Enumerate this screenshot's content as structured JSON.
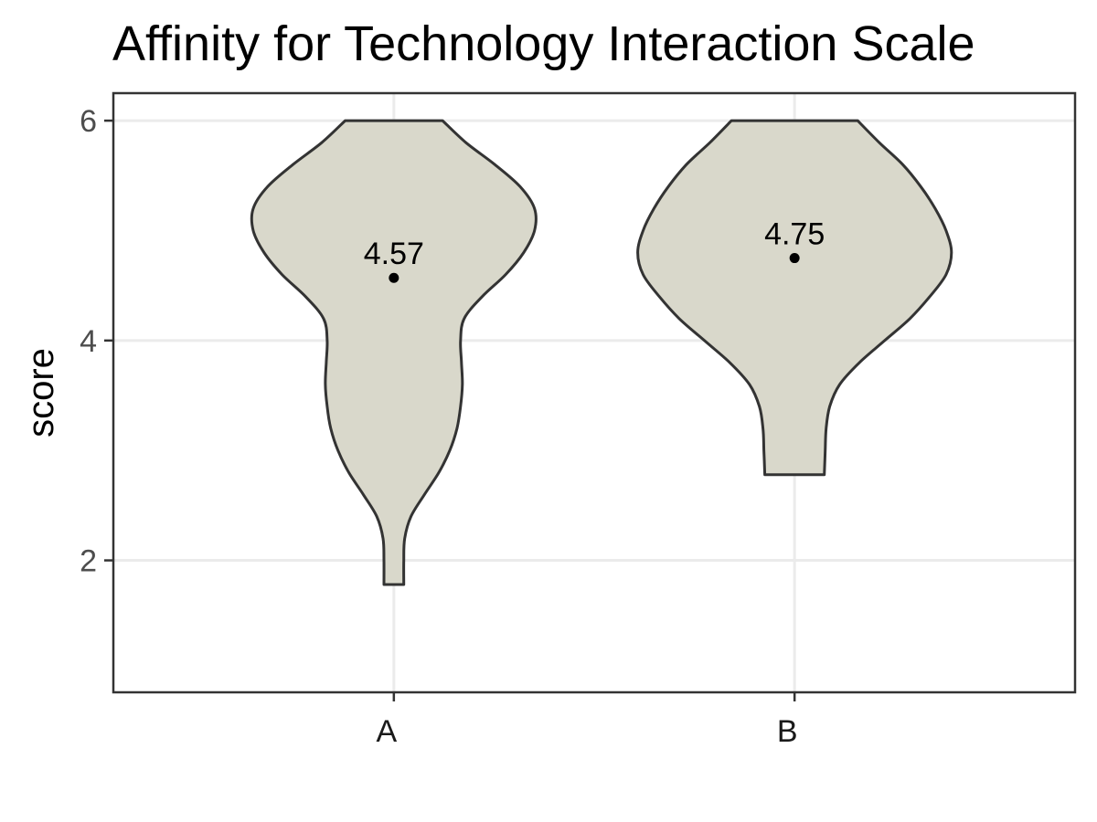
{
  "chart_data": {
    "type": "violin",
    "title": "Affinity for Technology Interaction Scale",
    "xlabel": "",
    "ylabel": "score",
    "categories": [
      "A",
      "B"
    ],
    "y_ticks": [
      2,
      4,
      6
    ],
    "ylim": [
      0.8,
      6.25
    ],
    "grid": true,
    "legend": "none",
    "colors": {
      "fill": "#d9d8cb",
      "outline": "#333333",
      "grid": "#ebebeb",
      "panel_border": "#333333",
      "mean_point": "#000000"
    },
    "series": [
      {
        "category": "A",
        "mean": 4.57,
        "mean_label": "4.57",
        "min": 1.78,
        "max": 6.0,
        "density_profile": [
          [
            1.78,
            0.055
          ],
          [
            2.0,
            0.055
          ],
          [
            2.2,
            0.06
          ],
          [
            2.4,
            0.095
          ],
          [
            2.6,
            0.17
          ],
          [
            2.8,
            0.25
          ],
          [
            3.0,
            0.31
          ],
          [
            3.2,
            0.35
          ],
          [
            3.4,
            0.37
          ],
          [
            3.6,
            0.38
          ],
          [
            3.8,
            0.375
          ],
          [
            4.0,
            0.37
          ],
          [
            4.2,
            0.39
          ],
          [
            4.4,
            0.49
          ],
          [
            4.6,
            0.62
          ],
          [
            4.8,
            0.72
          ],
          [
            5.0,
            0.78
          ],
          [
            5.2,
            0.78
          ],
          [
            5.4,
            0.7
          ],
          [
            5.6,
            0.56
          ],
          [
            5.8,
            0.4
          ],
          [
            6.0,
            0.27
          ]
        ]
      },
      {
        "category": "B",
        "mean": 4.75,
        "mean_label": "4.75",
        "min": 2.78,
        "max": 6.0,
        "density_profile": [
          [
            2.78,
            0.165
          ],
          [
            3.0,
            0.17
          ],
          [
            3.2,
            0.175
          ],
          [
            3.4,
            0.195
          ],
          [
            3.6,
            0.25
          ],
          [
            3.8,
            0.36
          ],
          [
            4.0,
            0.5
          ],
          [
            4.2,
            0.64
          ],
          [
            4.4,
            0.75
          ],
          [
            4.6,
            0.84
          ],
          [
            4.8,
            0.87
          ],
          [
            5.0,
            0.84
          ],
          [
            5.2,
            0.78
          ],
          [
            5.4,
            0.7
          ],
          [
            5.6,
            0.6
          ],
          [
            5.8,
            0.47
          ],
          [
            6.0,
            0.35
          ]
        ]
      }
    ]
  }
}
